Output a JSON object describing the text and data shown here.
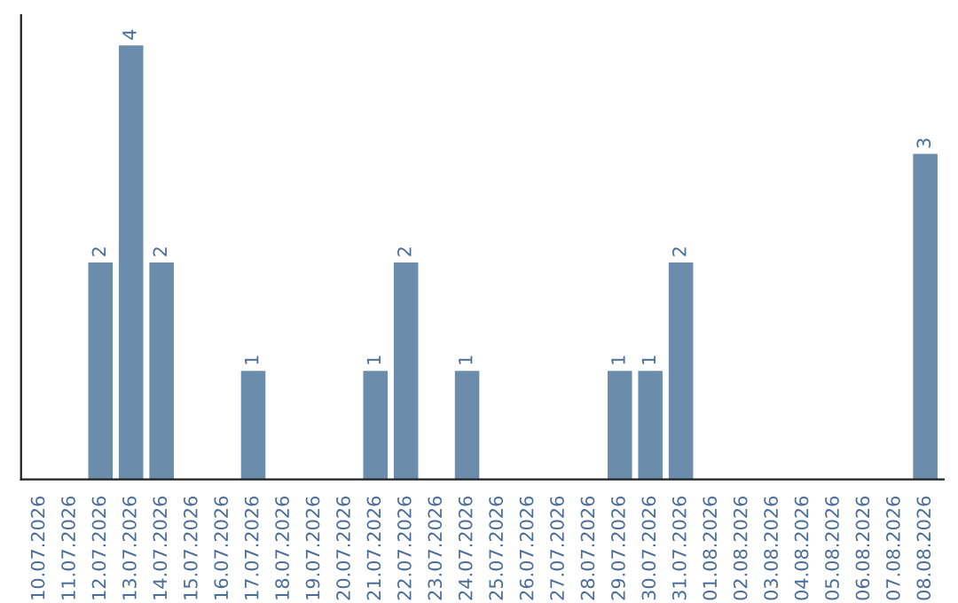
{
  "chart_data": {
    "type": "bar",
    "categories": [
      "10.07.2026",
      "11.07.2026",
      "12.07.2026",
      "13.07.2026",
      "14.07.2026",
      "15.07.2026",
      "16.07.2026",
      "17.07.2026",
      "18.07.2026",
      "19.07.2026",
      "20.07.2026",
      "21.07.2026",
      "22.07.2026",
      "23.07.2026",
      "24.07.2026",
      "25.07.2026",
      "26.07.2026",
      "27.07.2026",
      "28.07.2026",
      "29.07.2026",
      "30.07.2026",
      "31.07.2026",
      "01.08.2026",
      "02.08.2026",
      "03.08.2026",
      "04.08.2026",
      "05.08.2026",
      "06.08.2026",
      "07.08.2026",
      "08.08.2026"
    ],
    "values": [
      0,
      0,
      2,
      4,
      2,
      0,
      0,
      1,
      0,
      0,
      0,
      1,
      2,
      0,
      1,
      0,
      0,
      0,
      0,
      1,
      1,
      2,
      0,
      0,
      0,
      0,
      0,
      0,
      0,
      3
    ],
    "value_labels": [
      null,
      null,
      "2",
      "4",
      "2",
      null,
      null,
      "1",
      null,
      null,
      null,
      "1",
      "2",
      null,
      "1",
      null,
      null,
      null,
      null,
      "1",
      "1",
      "2",
      null,
      null,
      null,
      null,
      null,
      null,
      null,
      "3"
    ],
    "color": "#6b8cab",
    "tick_labels": "x",
    "grid": false,
    "legend": false
  }
}
